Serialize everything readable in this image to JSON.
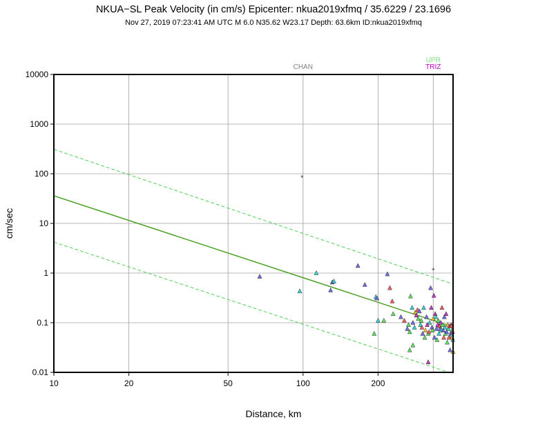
{
  "chart_data": {
    "type": "scatter",
    "title": "NKUA−SL Peak Velocity (in cm/s) Epicenter: nkua2019xfmq / 35.6229 / 23.1696",
    "subtitle": "Nov 27, 2019 07:23:41 AM UTC    M 6.0    N35.62 W23.17    Depth: 63.6km    ID:nkua2019xfmq",
    "xlabel": "Distance, km",
    "ylabel": "cm/sec",
    "x_scale": "log",
    "y_scale": "log",
    "xlim": [
      10,
      400
    ],
    "ylim": [
      0.01,
      10000
    ],
    "x_ticks": [
      10,
      20,
      50,
      100,
      200
    ],
    "x_tick_labels": [
      "10",
      "20",
      "50",
      "100",
      "200"
    ],
    "y_ticks": [
      0.01,
      0.1,
      1,
      10,
      100,
      1000,
      10000
    ],
    "y_tick_labels": [
      "0.01",
      "0.1",
      "1",
      "10",
      "100",
      "1000",
      "10000"
    ],
    "grid": true,
    "colors": {
      "grid": "#a0a0a0",
      "regression": "#4aa020",
      "bounds": "#50d050",
      "chan": "#808080",
      "upr": "#80e080",
      "triz": "#c000c0"
    },
    "regression_line": [
      [
        10,
        36
      ],
      [
        400,
        0.082
      ]
    ],
    "upper_bound": [
      [
        10,
        310
      ],
      [
        400,
        0.6
      ]
    ],
    "lower_bound": [
      [
        10,
        4.2
      ],
      [
        400,
        0.0094
      ]
    ],
    "station_lines": [
      {
        "label": "CHAN",
        "x": 100,
        "color": "#808080"
      },
      {
        "label": "UPR",
        "x": 333,
        "color": "#80e080"
      },
      {
        "label": "TRIZ",
        "x": 333,
        "color": "#c000c0"
      }
    ],
    "cross_markers": [
      [
        99,
        88
      ],
      [
        333,
        1.2
      ]
    ],
    "points": [
      [
        67,
        0.85,
        "#7070e0"
      ],
      [
        97,
        0.43,
        "#40d0d0"
      ],
      [
        113,
        1.0,
        "#40d0d0"
      ],
      [
        129,
        0.45,
        "#7070e0"
      ],
      [
        131,
        0.65,
        "#7070e0"
      ],
      [
        133,
        0.68,
        "#40d0d0"
      ],
      [
        166,
        1.4,
        "#7070e0"
      ],
      [
        177,
        0.58,
        "#7070e0"
      ],
      [
        196,
        0.33,
        "#40d0d0"
      ],
      [
        198,
        0.31,
        "#7070e0"
      ],
      [
        193,
        0.06,
        "#60e060"
      ],
      [
        200,
        0.11,
        "#40d0d0"
      ],
      [
        211,
        0.11,
        "#60e060"
      ],
      [
        218,
        0.95,
        "#7070e0"
      ],
      [
        223,
        0.5,
        "#f06060"
      ],
      [
        228,
        0.27,
        "#f06060"
      ],
      [
        230,
        0.15,
        "#60e060"
      ],
      [
        247,
        0.13,
        "#7070e0"
      ],
      [
        255,
        0.11,
        "#f06060"
      ],
      [
        262,
        0.075,
        "#7070e0"
      ],
      [
        265,
        0.09,
        "#60e060"
      ],
      [
        268,
        0.065,
        "#60e060"
      ],
      [
        270,
        0.34,
        "#60e060"
      ],
      [
        274,
        0.2,
        "#40d0d0"
      ],
      [
        276,
        0.1,
        "#7070e0"
      ],
      [
        280,
        0.08,
        "#40d0d0"
      ],
      [
        282,
        0.16,
        "#f0c040"
      ],
      [
        285,
        0.14,
        "#c040c0"
      ],
      [
        288,
        0.18,
        "#f06060"
      ],
      [
        290,
        0.12,
        "#60e060"
      ],
      [
        293,
        0.17,
        "#7070e0"
      ],
      [
        296,
        0.09,
        "#40d0d0"
      ],
      [
        298,
        0.11,
        "#60e060"
      ],
      [
        300,
        0.08,
        "#f06060"
      ],
      [
        302,
        0.06,
        "#7070e0"
      ],
      [
        305,
        0.2,
        "#40d0d0"
      ],
      [
        308,
        0.05,
        "#60e060"
      ],
      [
        310,
        0.07,
        "#f0c040"
      ],
      [
        313,
        0.13,
        "#7070e0"
      ],
      [
        315,
        0.09,
        "#c040c0"
      ],
      [
        318,
        0.06,
        "#60e060"
      ],
      [
        320,
        0.065,
        "#f06060"
      ],
      [
        322,
        0.1,
        "#40d0d0"
      ],
      [
        325,
        0.5,
        "#7070e0"
      ],
      [
        327,
        0.2,
        "#c040c0"
      ],
      [
        329,
        0.08,
        "#7070e0"
      ],
      [
        331,
        0.07,
        "#60e060"
      ],
      [
        333,
        0.12,
        "#f0c040"
      ],
      [
        335,
        0.35,
        "#c040c0"
      ],
      [
        337,
        0.05,
        "#7070e0"
      ],
      [
        339,
        0.15,
        "#c040c0"
      ],
      [
        341,
        0.13,
        "#40d0d0"
      ],
      [
        343,
        0.075,
        "#7070e0"
      ],
      [
        345,
        0.045,
        "#60e060"
      ],
      [
        347,
        0.09,
        "#c040c0"
      ],
      [
        349,
        0.11,
        "#60e060"
      ],
      [
        351,
        0.06,
        "#40d0d0"
      ],
      [
        353,
        0.085,
        "#f06060"
      ],
      [
        355,
        0.075,
        "#7070e0"
      ],
      [
        357,
        0.1,
        "#c040c0"
      ],
      [
        359,
        0.07,
        "#40d0d0"
      ],
      [
        361,
        0.2,
        "#f06060"
      ],
      [
        363,
        0.09,
        "#60e060"
      ],
      [
        365,
        0.07,
        "#7070e0"
      ],
      [
        367,
        0.05,
        "#f06060"
      ],
      [
        369,
        0.13,
        "#7070e0"
      ],
      [
        371,
        0.08,
        "#40d0d0"
      ],
      [
        373,
        0.06,
        "#60e060"
      ],
      [
        375,
        0.15,
        "#c040c0"
      ],
      [
        377,
        0.065,
        "#7070e0"
      ],
      [
        379,
        0.04,
        "#60e060"
      ],
      [
        381,
        0.09,
        "#f0c040"
      ],
      [
        383,
        0.075,
        "#40d0d0"
      ],
      [
        385,
        0.05,
        "#f06060"
      ],
      [
        387,
        0.085,
        "#f06060"
      ],
      [
        389,
        0.028,
        "#7070e0"
      ],
      [
        391,
        0.06,
        "#7070e0"
      ],
      [
        393,
        0.09,
        "#c040c0"
      ],
      [
        395,
        0.055,
        "#40d0d0"
      ],
      [
        397,
        0.05,
        "#f0c040"
      ],
      [
        399,
        0.045,
        "#40d0d0"
      ],
      [
        396,
        0.07,
        "#60e060"
      ],
      [
        394,
        0.085,
        "#f06060"
      ],
      [
        398,
        0.065,
        "#c040c0"
      ],
      [
        400,
        0.026,
        "#f0c040"
      ],
      [
        318,
        0.016,
        "#c040c0"
      ],
      [
        268,
        0.028,
        "#60e060"
      ],
      [
        276,
        0.035,
        "#60e060"
      ]
    ]
  }
}
